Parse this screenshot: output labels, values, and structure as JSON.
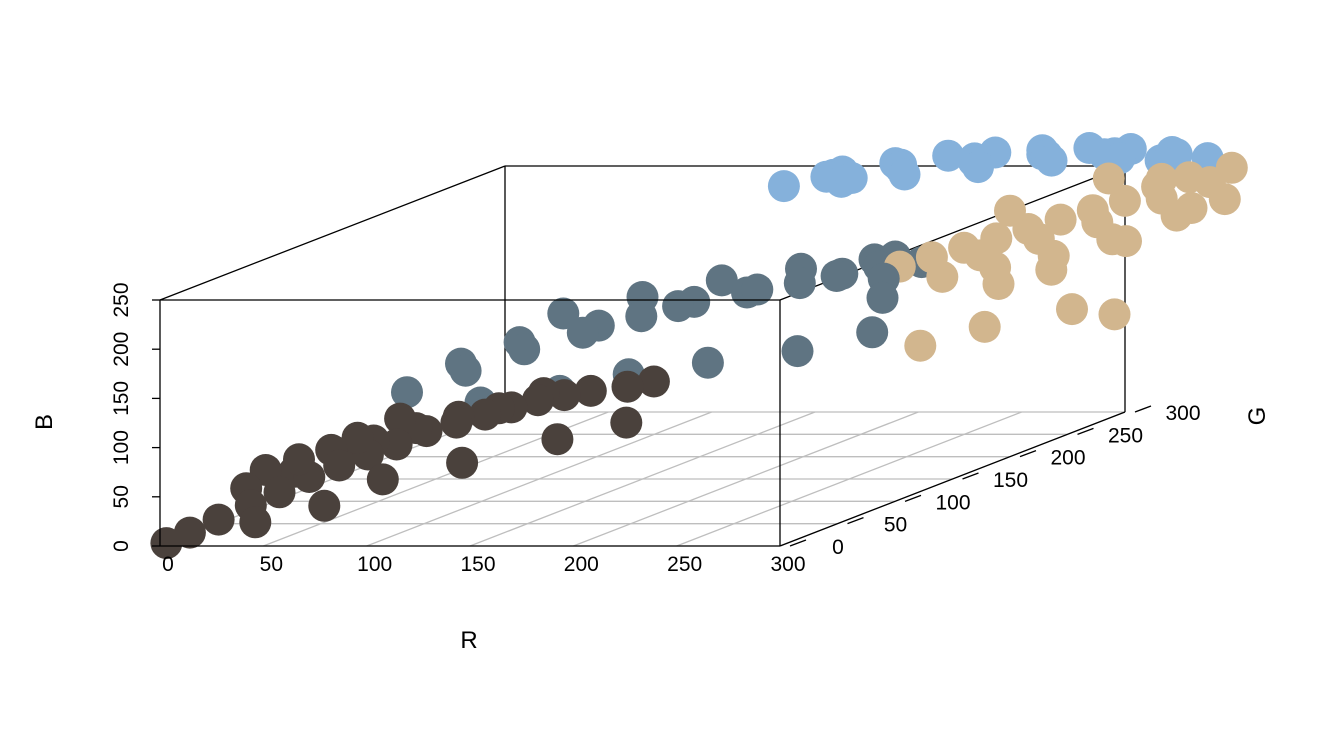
{
  "chart_data": {
    "type": "scatter",
    "projection": "3d",
    "grid": true,
    "xlabel": "R",
    "ylabel": "G",
    "zlabel": "B",
    "xlim": [
      0,
      300
    ],
    "ylim": [
      0,
      300
    ],
    "zlim": [
      0,
      250
    ],
    "x_ticks": [
      "0",
      "50",
      "100",
      "150",
      "200",
      "250",
      "300"
    ],
    "y_ticks": [
      "0",
      "50",
      "100",
      "150",
      "200",
      "250",
      "300"
    ],
    "z_ticks": [
      "0",
      "50",
      "100",
      "150",
      "200",
      "250"
    ],
    "clusters": [
      {
        "color": "#4a413c",
        "points": [
          [
            2,
            2,
            2
          ],
          [
            10,
            8,
            10
          ],
          [
            20,
            15,
            20
          ],
          [
            30,
            25,
            30
          ],
          [
            40,
            32,
            40
          ],
          [
            50,
            40,
            52
          ],
          [
            60,
            48,
            60
          ],
          [
            70,
            55,
            68
          ],
          [
            80,
            62,
            75
          ],
          [
            90,
            70,
            85
          ],
          [
            100,
            78,
            90
          ],
          [
            110,
            85,
            95
          ],
          [
            120,
            90,
            100
          ],
          [
            130,
            95,
            105
          ],
          [
            140,
            100,
            108
          ],
          [
            150,
            105,
            110
          ],
          [
            165,
            110,
            112
          ],
          [
            175,
            115,
            115
          ],
          [
            40,
            45,
            55
          ],
          [
            55,
            55,
            70
          ],
          [
            70,
            60,
            80
          ],
          [
            85,
            70,
            88
          ],
          [
            100,
            80,
            95
          ],
          [
            115,
            88,
            100
          ],
          [
            130,
            100,
            110
          ],
          [
            35,
            20,
            15
          ],
          [
            60,
            35,
            25
          ],
          [
            80,
            50,
            45
          ],
          [
            110,
            65,
            55
          ],
          [
            145,
            85,
            70
          ],
          [
            170,
            100,
            80
          ],
          [
            25,
            30,
            45
          ],
          [
            45,
            40,
            70
          ],
          [
            65,
            55,
            85
          ],
          [
            30,
            38,
            60
          ],
          [
            55,
            50,
            75
          ],
          [
            80,
            65,
            100
          ]
        ]
      },
      {
        "color": "#5f7482",
        "points": [
          [
            75,
            80,
            120
          ],
          [
            95,
            95,
            135
          ],
          [
            115,
            110,
            150
          ],
          [
            135,
            125,
            160
          ],
          [
            155,
            140,
            170
          ],
          [
            175,
            150,
            180
          ],
          [
            195,
            160,
            185
          ],
          [
            215,
            170,
            190
          ],
          [
            230,
            180,
            195
          ],
          [
            245,
            185,
            200
          ],
          [
            120,
            135,
            175
          ],
          [
            150,
            150,
            185
          ],
          [
            180,
            165,
            195
          ],
          [
            210,
            180,
            200
          ],
          [
            240,
            190,
            205
          ],
          [
            90,
            100,
            140
          ],
          [
            110,
            115,
            155
          ],
          [
            140,
            130,
            165
          ],
          [
            170,
            145,
            178
          ],
          [
            200,
            160,
            188
          ],
          [
            230,
            175,
            195
          ],
          [
            250,
            190,
            208
          ],
          [
            260,
            195,
            200
          ],
          [
            250,
            180,
            190
          ],
          [
            255,
            170,
            175
          ],
          [
            105,
            90,
            105
          ],
          [
            135,
            105,
            110
          ],
          [
            160,
            120,
            120
          ],
          [
            190,
            135,
            125
          ],
          [
            225,
            150,
            130
          ],
          [
            250,
            170,
            140
          ]
        ]
      },
      {
        "color": "#d2b68e",
        "points": [
          [
            255,
            185,
            200
          ],
          [
            265,
            195,
            205
          ],
          [
            275,
            205,
            210
          ],
          [
            285,
            215,
            215
          ],
          [
            295,
            225,
            220
          ],
          [
            305,
            235,
            225
          ],
          [
            315,
            245,
            230
          ],
          [
            325,
            255,
            235
          ],
          [
            335,
            265,
            245
          ],
          [
            345,
            275,
            250
          ],
          [
            360,
            285,
            255
          ],
          [
            280,
            210,
            200
          ],
          [
            300,
            225,
            210
          ],
          [
            320,
            240,
            220
          ],
          [
            340,
            260,
            235
          ],
          [
            355,
            275,
            245
          ],
          [
            290,
            205,
            190
          ],
          [
            310,
            220,
            195
          ],
          [
            330,
            235,
            205
          ],
          [
            350,
            255,
            220
          ],
          [
            365,
            270,
            230
          ],
          [
            270,
            195,
            185
          ],
          [
            300,
            190,
            180
          ],
          [
            320,
            200,
            190
          ],
          [
            345,
            220,
            210
          ],
          [
            360,
            250,
            230
          ],
          [
            290,
            140,
            140
          ],
          [
            310,
            160,
            150
          ],
          [
            330,
            200,
            150
          ],
          [
            345,
            210,
            140
          ],
          [
            300,
            200,
            250
          ],
          [
            320,
            250,
            260
          ],
          [
            340,
            260,
            255
          ]
        ]
      },
      {
        "color": "#85b1db",
        "points": [
          [
            160,
            255,
            250
          ],
          [
            180,
            270,
            258
          ],
          [
            200,
            280,
            262
          ],
          [
            220,
            290,
            265
          ],
          [
            240,
            295,
            266
          ],
          [
            260,
            300,
            266
          ],
          [
            280,
            305,
            266
          ],
          [
            300,
            305,
            265
          ],
          [
            320,
            305,
            262
          ],
          [
            340,
            300,
            258
          ],
          [
            185,
            260,
            252
          ],
          [
            210,
            270,
            255
          ],
          [
            240,
            280,
            258
          ],
          [
            270,
            290,
            260
          ],
          [
            300,
            295,
            260
          ],
          [
            325,
            290,
            257
          ],
          [
            175,
            265,
            255
          ],
          [
            205,
            275,
            260
          ],
          [
            235,
            285,
            262
          ],
          [
            265,
            295,
            263
          ],
          [
            295,
            300,
            263
          ],
          [
            325,
            300,
            262
          ],
          [
            200,
            285,
            258
          ],
          [
            230,
            295,
            260
          ],
          [
            260,
            300,
            262
          ],
          [
            290,
            300,
            262
          ],
          [
            320,
            295,
            258
          ],
          [
            170,
            280,
            250
          ],
          [
            190,
            260,
            256
          ]
        ]
      }
    ]
  }
}
